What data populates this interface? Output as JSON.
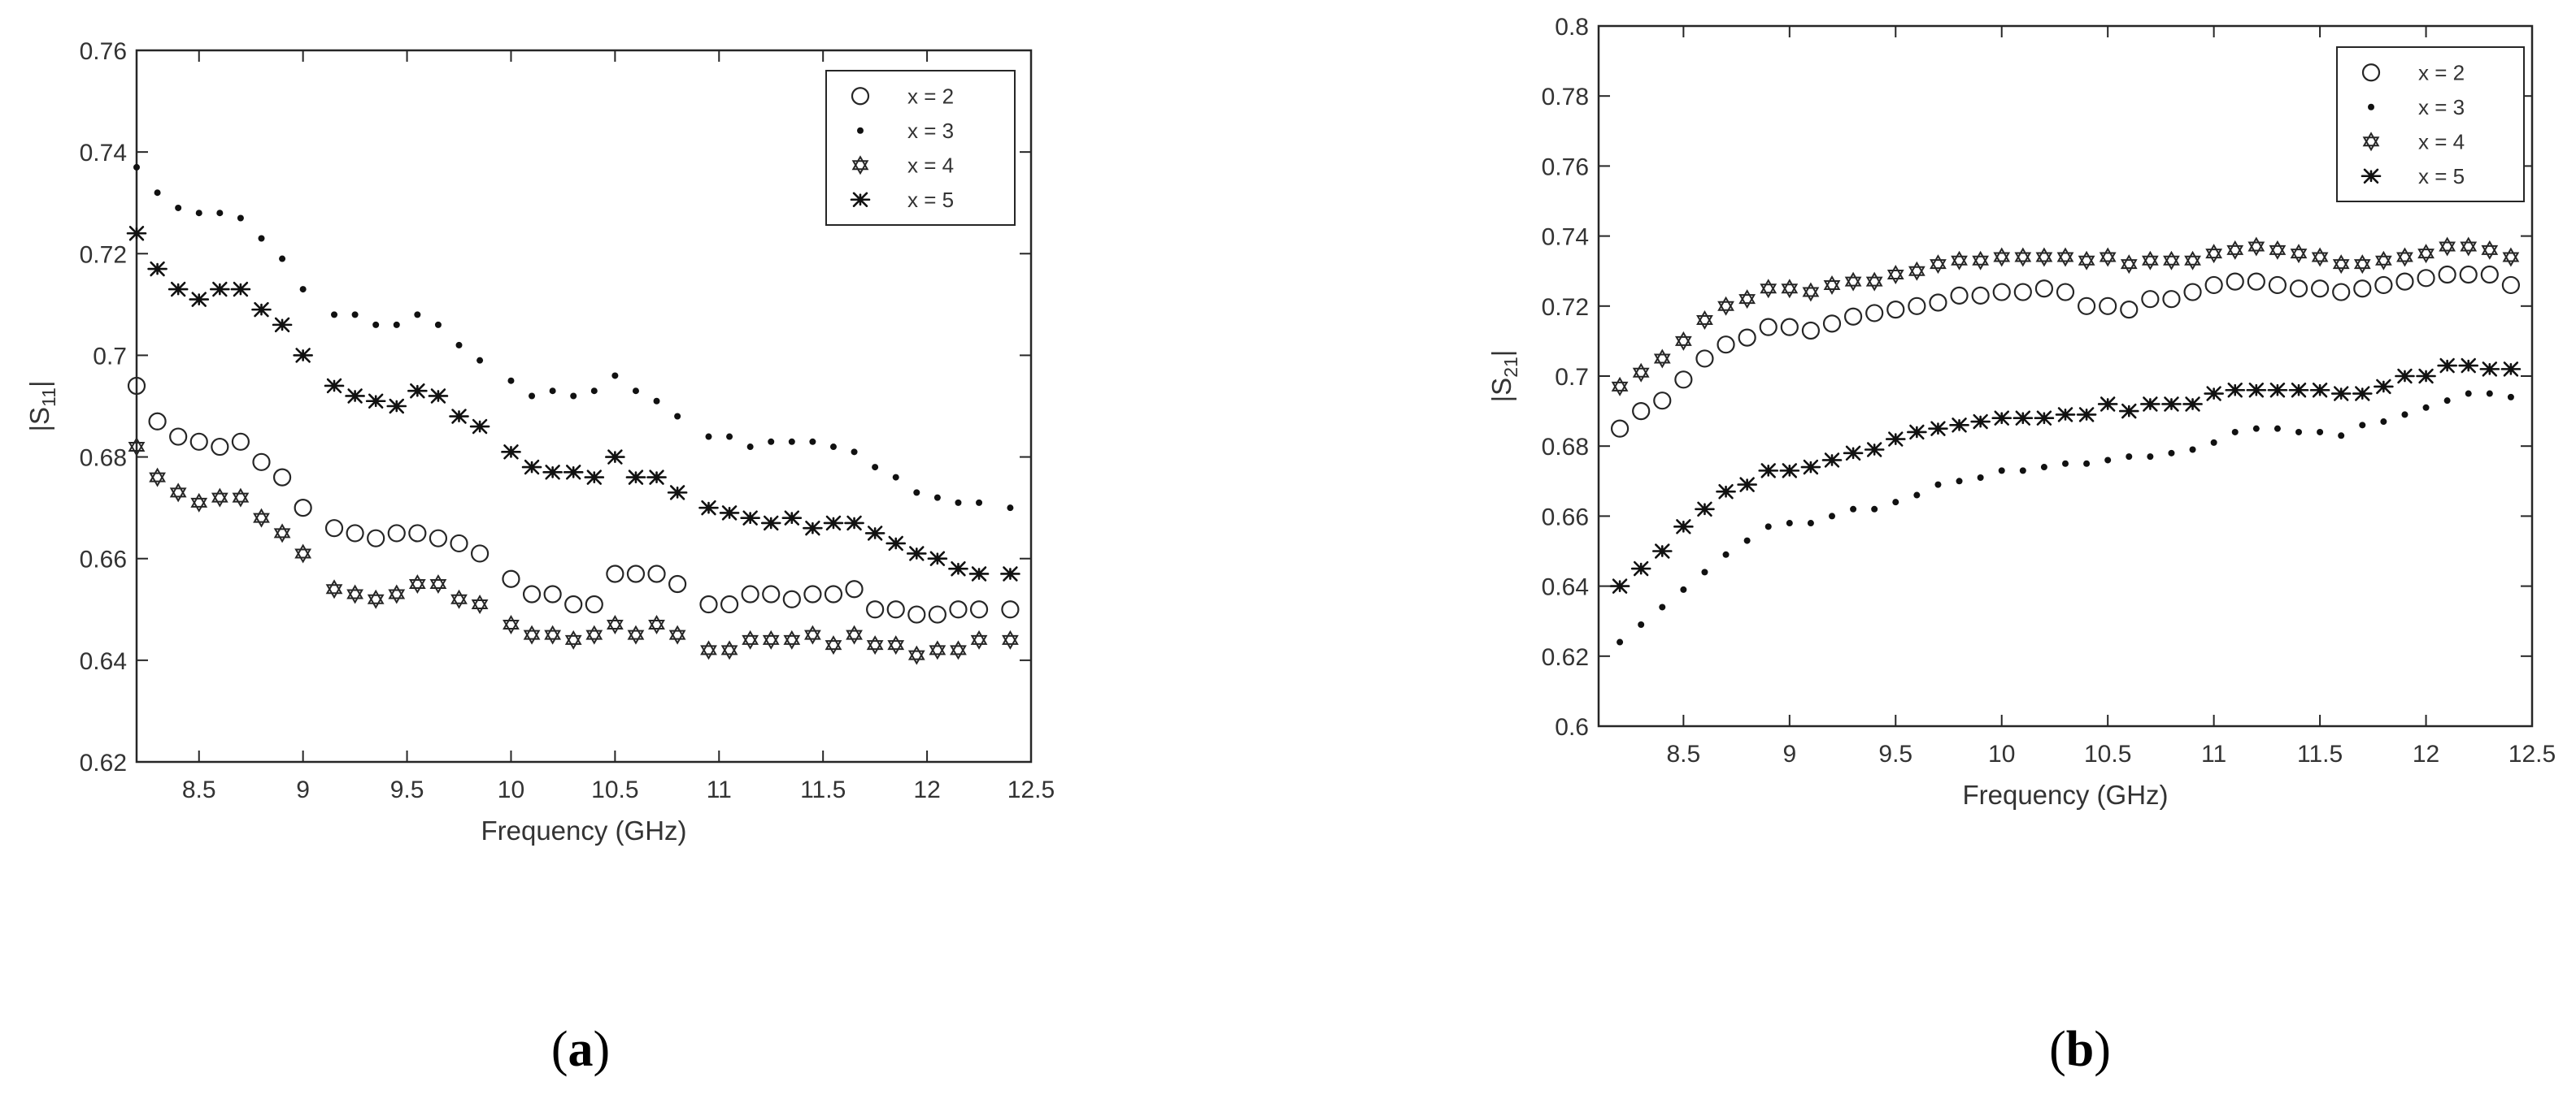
{
  "panels": [
    {
      "caption_open": "(",
      "caption_letter": "a",
      "caption_close": ")"
    },
    {
      "caption_open": "(",
      "caption_letter": "b",
      "caption_close": ")"
    }
  ],
  "chart_data": [
    {
      "type": "scatter",
      "title": "",
      "xlabel": "Frequency (GHz)",
      "ylabel": "|S11|",
      "ylabel_main": "|S",
      "ylabel_sub": "11",
      "ylabel_end": "|",
      "xlim": [
        8.2,
        12.5
      ],
      "ylim": [
        0.62,
        0.76
      ],
      "xticks": [
        8.5,
        9,
        9.5,
        10,
        10.5,
        11,
        11.5,
        12,
        12.5
      ],
      "xtick_labels": [
        "8.5",
        "9",
        "9.5",
        "10",
        "10.5",
        "11",
        "11.5",
        "12",
        "12.5"
      ],
      "yticks": [
        0.62,
        0.64,
        0.66,
        0.68,
        0.7,
        0.72,
        0.74,
        0.76
      ],
      "ytick_labels": [
        "0.62",
        "0.64",
        "0.66",
        "0.68",
        "0.7",
        "0.72",
        "0.74",
        "0.76"
      ],
      "grid": false,
      "legend_position": "top-right",
      "x": [
        8.2,
        8.3,
        8.4,
        8.5,
        8.6,
        8.7,
        8.8,
        8.9,
        9.0,
        9.15,
        9.25,
        9.35,
        9.45,
        9.55,
        9.65,
        9.75,
        9.85,
        10.0,
        10.1,
        10.2,
        10.3,
        10.4,
        10.5,
        10.6,
        10.7,
        10.8,
        10.95,
        11.05,
        11.15,
        11.25,
        11.35,
        11.45,
        11.55,
        11.65,
        11.75,
        11.85,
        11.95,
        12.05,
        12.15,
        12.25,
        12.4
      ],
      "series": [
        {
          "name": "x = 2",
          "marker": "circle",
          "values": [
            0.694,
            0.687,
            0.684,
            0.683,
            0.682,
            0.683,
            0.679,
            0.676,
            0.67,
            0.666,
            0.665,
            0.664,
            0.665,
            0.665,
            0.664,
            0.663,
            0.661,
            0.656,
            0.653,
            0.653,
            0.651,
            0.651,
            0.657,
            0.657,
            0.657,
            0.655,
            0.651,
            0.651,
            0.653,
            0.653,
            0.652,
            0.653,
            0.653,
            0.654,
            0.65,
            0.65,
            0.649,
            0.649,
            0.65,
            0.65,
            0.65
          ]
        },
        {
          "name": "x = 3",
          "marker": "dot",
          "values": [
            0.737,
            0.732,
            0.729,
            0.728,
            0.728,
            0.727,
            0.723,
            0.719,
            0.713,
            0.708,
            0.708,
            0.706,
            0.706,
            0.708,
            0.706,
            0.702,
            0.699,
            0.695,
            0.692,
            0.693,
            0.692,
            0.693,
            0.696,
            0.693,
            0.691,
            0.688,
            0.684,
            0.684,
            0.682,
            0.683,
            0.683,
            0.683,
            0.682,
            0.681,
            0.678,
            0.676,
            0.673,
            0.672,
            0.671,
            0.671,
            0.67
          ]
        },
        {
          "name": "x = 4",
          "marker": "hexagram",
          "values": [
            0.682,
            0.676,
            0.673,
            0.671,
            0.672,
            0.672,
            0.668,
            0.665,
            0.661,
            0.654,
            0.653,
            0.652,
            0.653,
            0.655,
            0.655,
            0.652,
            0.651,
            0.647,
            0.645,
            0.645,
            0.644,
            0.645,
            0.647,
            0.645,
            0.647,
            0.645,
            0.642,
            0.642,
            0.644,
            0.644,
            0.644,
            0.645,
            0.643,
            0.645,
            0.643,
            0.643,
            0.641,
            0.642,
            0.642,
            0.644,
            0.644
          ]
        },
        {
          "name": "x = 5",
          "marker": "asterisk",
          "values": [
            0.724,
            0.717,
            0.713,
            0.711,
            0.713,
            0.713,
            0.709,
            0.706,
            0.7,
            0.694,
            0.692,
            0.691,
            0.69,
            0.693,
            0.692,
            0.688,
            0.686,
            0.681,
            0.678,
            0.677,
            0.677,
            0.676,
            0.68,
            0.676,
            0.676,
            0.673,
            0.67,
            0.669,
            0.668,
            0.667,
            0.668,
            0.666,
            0.667,
            0.667,
            0.665,
            0.663,
            0.661,
            0.66,
            0.658,
            0.657,
            0.657
          ]
        }
      ]
    },
    {
      "type": "scatter",
      "title": "",
      "xlabel": "Frequency (GHz)",
      "ylabel": "|S21|",
      "ylabel_main": "|S",
      "ylabel_sub": "21",
      "ylabel_end": "|",
      "xlim": [
        8.1,
        12.5
      ],
      "ylim": [
        0.6,
        0.8
      ],
      "xticks": [
        8.5,
        9,
        9.5,
        10,
        10.5,
        11,
        11.5,
        12,
        12.5
      ],
      "xtick_labels": [
        "8.5",
        "9",
        "9.5",
        "10",
        "10.5",
        "11",
        "11.5",
        "12",
        "12.5"
      ],
      "yticks": [
        0.6,
        0.62,
        0.64,
        0.66,
        0.68,
        0.7,
        0.72,
        0.74,
        0.76,
        0.78,
        0.8
      ],
      "ytick_labels": [
        "0.6",
        "0.62",
        "0.64",
        "0.66",
        "0.68",
        "0.7",
        "0.72",
        "0.74",
        "0.76",
        "0.78",
        "0.8"
      ],
      "grid": false,
      "legend_position": "top-right",
      "x": [
        8.2,
        8.3,
        8.4,
        8.5,
        8.6,
        8.7,
        8.8,
        8.9,
        9.0,
        9.1,
        9.2,
        9.3,
        9.4,
        9.5,
        9.6,
        9.7,
        9.8,
        9.9,
        10.0,
        10.1,
        10.2,
        10.3,
        10.4,
        10.5,
        10.6,
        10.7,
        10.8,
        10.9,
        11.0,
        11.1,
        11.2,
        11.3,
        11.4,
        11.5,
        11.6,
        11.7,
        11.8,
        11.9,
        12.0,
        12.1,
        12.2,
        12.3,
        12.4
      ],
      "series": [
        {
          "name": "x = 2",
          "marker": "circle",
          "values": [
            0.685,
            0.69,
            0.693,
            0.699,
            0.705,
            0.709,
            0.711,
            0.714,
            0.714,
            0.713,
            0.715,
            0.717,
            0.718,
            0.719,
            0.72,
            0.721,
            0.723,
            0.723,
            0.724,
            0.724,
            0.725,
            0.724,
            0.72,
            0.72,
            0.719,
            0.722,
            0.722,
            0.724,
            0.726,
            0.727,
            0.727,
            0.726,
            0.725,
            0.725,
            0.724,
            0.725,
            0.726,
            0.727,
            0.728,
            0.729,
            0.729,
            0.729,
            0.726
          ]
        },
        {
          "name": "x = 3",
          "marker": "dot",
          "values": [
            0.624,
            0.629,
            0.634,
            0.639,
            0.644,
            0.649,
            0.653,
            0.657,
            0.658,
            0.658,
            0.66,
            0.662,
            0.662,
            0.664,
            0.666,
            0.669,
            0.67,
            0.671,
            0.673,
            0.673,
            0.674,
            0.675,
            0.675,
            0.676,
            0.677,
            0.677,
            0.678,
            0.679,
            0.681,
            0.684,
            0.685,
            0.685,
            0.684,
            0.684,
            0.683,
            0.686,
            0.687,
            0.689,
            0.691,
            0.693,
            0.695,
            0.695,
            0.694
          ]
        },
        {
          "name": "x = 4",
          "marker": "hexagram",
          "values": [
            0.697,
            0.701,
            0.705,
            0.71,
            0.716,
            0.72,
            0.722,
            0.725,
            0.725,
            0.724,
            0.726,
            0.727,
            0.727,
            0.729,
            0.73,
            0.732,
            0.733,
            0.733,
            0.734,
            0.734,
            0.734,
            0.734,
            0.733,
            0.734,
            0.732,
            0.733,
            0.733,
            0.733,
            0.735,
            0.736,
            0.737,
            0.736,
            0.735,
            0.734,
            0.732,
            0.732,
            0.733,
            0.734,
            0.735,
            0.737,
            0.737,
            0.736,
            0.734
          ]
        },
        {
          "name": "x = 5",
          "marker": "asterisk",
          "values": [
            0.64,
            0.645,
            0.65,
            0.657,
            0.662,
            0.667,
            0.669,
            0.673,
            0.673,
            0.674,
            0.676,
            0.678,
            0.679,
            0.682,
            0.684,
            0.685,
            0.686,
            0.687,
            0.688,
            0.688,
            0.688,
            0.689,
            0.689,
            0.692,
            0.69,
            0.692,
            0.692,
            0.692,
            0.695,
            0.696,
            0.696,
            0.696,
            0.696,
            0.696,
            0.695,
            0.695,
            0.697,
            0.7,
            0.7,
            0.703,
            0.703,
            0.702,
            0.702
          ]
        }
      ]
    }
  ]
}
